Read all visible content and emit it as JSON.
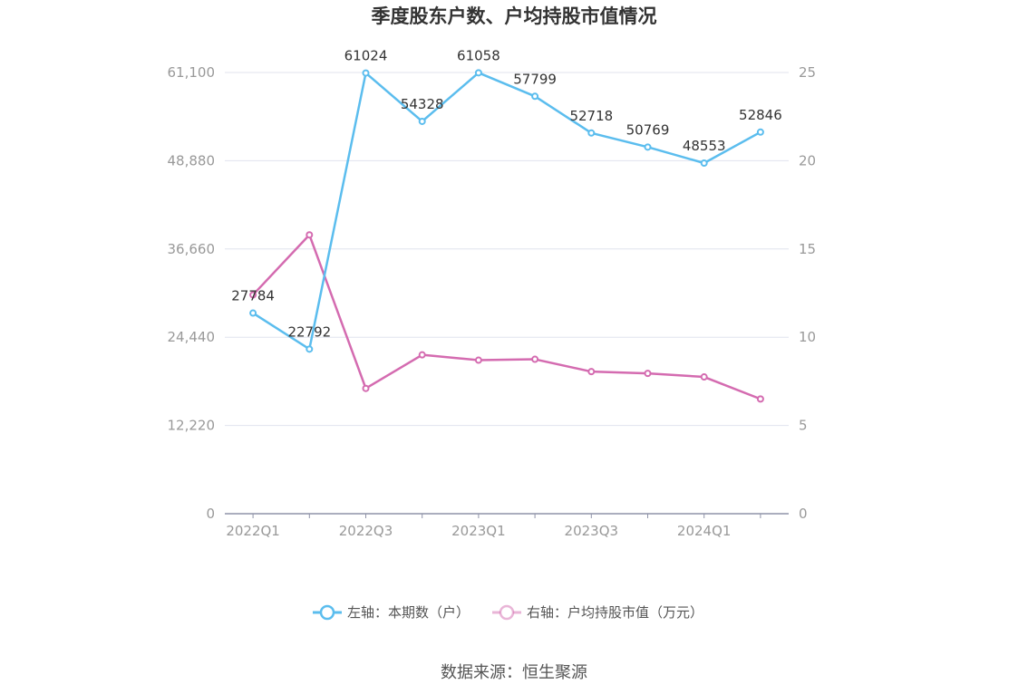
{
  "chart_data": {
    "type": "line",
    "title": "季度股东户数、户均持股市值情况",
    "categories": [
      "2022Q1",
      "2022Q2",
      "2022Q3",
      "2022Q4",
      "2023Q1",
      "2023Q2",
      "2023Q3",
      "2023Q4",
      "2024Q1",
      "2024Q2"
    ],
    "x_tick_labels": [
      "2022Q1",
      "2022Q3",
      "2023Q1",
      "2023Q3",
      "2024Q1"
    ],
    "y_left": {
      "ticks": [
        "0",
        "12,220",
        "24,440",
        "36,660",
        "48,880",
        "61,100"
      ],
      "range": [
        0,
        61100
      ]
    },
    "y_right": {
      "ticks": [
        "0",
        "5",
        "10",
        "15",
        "20",
        "25"
      ],
      "range": [
        0,
        25
      ]
    },
    "grid": true,
    "legend_position": "bottom",
    "series": [
      {
        "name": "左轴：本期数（户）",
        "axis": "left",
        "color": "#5bbdee",
        "values": [
          27784,
          22792,
          61024,
          54328,
          61058,
          57799,
          52718,
          50769,
          48553,
          52846
        ],
        "labels": [
          "27784",
          "22792",
          "61024",
          "54328",
          "61058",
          "57799",
          "52718",
          "50769",
          "48553",
          "52846"
        ]
      },
      {
        "name": "右轴：户均持股市值（万元）",
        "axis": "right",
        "color": "#d46bb0",
        "values": [
          12.4,
          15.8,
          7.1,
          9.0,
          8.7,
          8.75,
          8.05,
          7.95,
          7.75,
          6.5
        ]
      }
    ],
    "source": "数据来源：恒生聚源"
  }
}
